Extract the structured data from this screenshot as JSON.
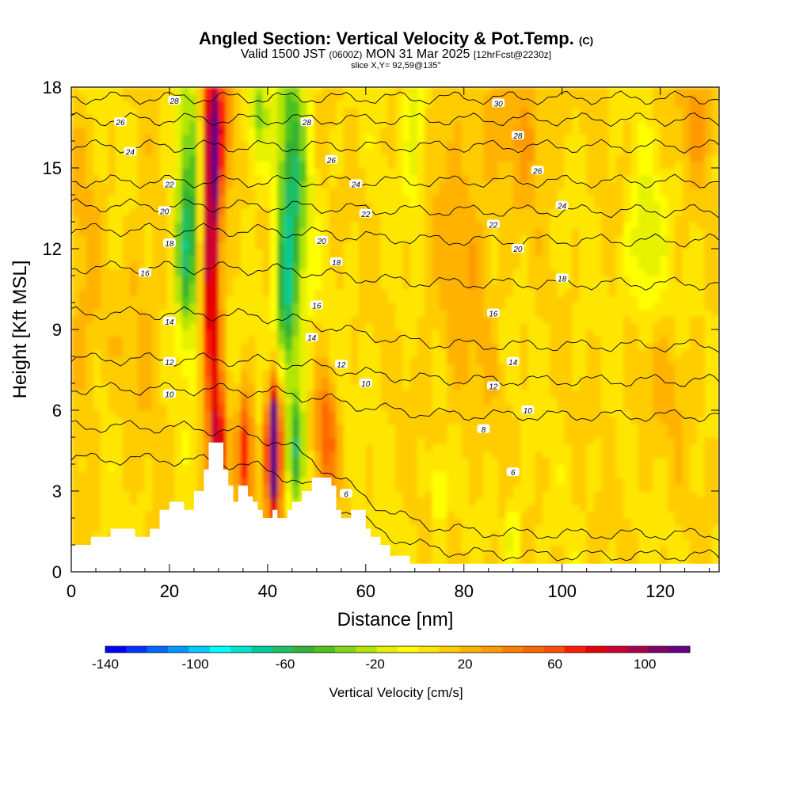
{
  "header": {
    "title": "Angled Section: Vertical Velocity & Pot.Temp.",
    "title_tag": "(C)",
    "valid_a": "Valid 1500 JST",
    "valid_utc": "(0600Z)",
    "valid_b": "MON 31 Mar 2025",
    "fcst": "[12hrFcst@2230z]",
    "slice": "slice X,Y= 92,59@135°"
  },
  "chart_data": {
    "type": "heatmap",
    "xlabel": "Distance [nm]",
    "ylabel": "Height [Kft MSL]",
    "xlim": [
      0,
      132
    ],
    "ylim": [
      0,
      18
    ],
    "x_ticks": [
      0,
      20,
      40,
      60,
      80,
      100,
      120
    ],
    "y_ticks": [
      0,
      3,
      6,
      9,
      12,
      15,
      18
    ],
    "colorbar": {
      "label": "Vertical Velocity [cm/s]",
      "range": [
        -140,
        120
      ],
      "tick_values": [
        -140,
        -100,
        -60,
        -20,
        20,
        60,
        100
      ],
      "colors": [
        "#0000ff",
        "#0033ff",
        "#0066ff",
        "#0099ff",
        "#00ccff",
        "#00ffff",
        "#00e5cc",
        "#00cc99",
        "#1ebf66",
        "#33b233",
        "#4dc21a",
        "#80d419",
        "#b3e600",
        "#e6f200",
        "#ffff00",
        "#ffe600",
        "#ffcc00",
        "#ffb300",
        "#ff9900",
        "#ff8000",
        "#ff6600",
        "#ff4d00",
        "#ff1a00",
        "#e60000",
        "#cc0033",
        "#a8004d",
        "#800066",
        "#660080"
      ]
    },
    "terrain_kft": [
      [
        0,
        1.0
      ],
      [
        4,
        1.0
      ],
      [
        4,
        1.3
      ],
      [
        8,
        1.3
      ],
      [
        8,
        1.6
      ],
      [
        13,
        1.6
      ],
      [
        13,
        1.3
      ],
      [
        16,
        1.3
      ],
      [
        16,
        1.6
      ],
      [
        18,
        1.6
      ],
      [
        18,
        2.3
      ],
      [
        20,
        2.3
      ],
      [
        20,
        2.6
      ],
      [
        23,
        2.6
      ],
      [
        23,
        2.3
      ],
      [
        25,
        2.3
      ],
      [
        25,
        3.0
      ],
      [
        27,
        3.0
      ],
      [
        27,
        3.8
      ],
      [
        28,
        3.8
      ],
      [
        28,
        4.8
      ],
      [
        31,
        4.8
      ],
      [
        31,
        3.8
      ],
      [
        32,
        3.8
      ],
      [
        32,
        3.2
      ],
      [
        33,
        3.2
      ],
      [
        33,
        2.6
      ],
      [
        34,
        2.6
      ],
      [
        34,
        3.2
      ],
      [
        36,
        3.2
      ],
      [
        36,
        2.8
      ],
      [
        37,
        2.8
      ],
      [
        37,
        2.6
      ],
      [
        38,
        2.6
      ],
      [
        38,
        2.3
      ],
      [
        39,
        2.3
      ],
      [
        39,
        2.0
      ],
      [
        41,
        2.0
      ],
      [
        41,
        2.3
      ],
      [
        42,
        2.3
      ],
      [
        42,
        2.0
      ],
      [
        44,
        2.0
      ],
      [
        44,
        2.3
      ],
      [
        45,
        2.3
      ],
      [
        45,
        2.6
      ],
      [
        47,
        2.6
      ],
      [
        47,
        3.0
      ],
      [
        49,
        3.0
      ],
      [
        49,
        3.5
      ],
      [
        53,
        3.5
      ],
      [
        53,
        3.2
      ],
      [
        54,
        3.2
      ],
      [
        54,
        2.3
      ],
      [
        55,
        2.3
      ],
      [
        55,
        2.0
      ],
      [
        57,
        2.0
      ],
      [
        57,
        2.3
      ],
      [
        60,
        2.3
      ],
      [
        60,
        1.6
      ],
      [
        61,
        1.6
      ],
      [
        61,
        1.3
      ],
      [
        63,
        1.3
      ],
      [
        63,
        1.0
      ],
      [
        65,
        1.0
      ],
      [
        65,
        0.6
      ],
      [
        69,
        0.6
      ],
      [
        69,
        0.3
      ],
      [
        132,
        0.3
      ]
    ],
    "velocity_features": [
      {
        "x": 28.5,
        "y": 12.0,
        "sx": 1.3,
        "sy": 4.5,
        "w": 95
      },
      {
        "x": 29.5,
        "y": 16.5,
        "sx": 2.0,
        "sy": 2.0,
        "w": 60
      },
      {
        "x": 41.2,
        "y": 4.8,
        "sx": 0.8,
        "sy": 1.2,
        "w": 150
      },
      {
        "x": 41.5,
        "y": 4.0,
        "sx": 1.2,
        "sy": 2.5,
        "w": 60
      },
      {
        "x": 30.0,
        "y": 4.5,
        "sx": 1.0,
        "sy": 1.5,
        "w": 85
      },
      {
        "x": 35.5,
        "y": 4.3,
        "sx": 1.0,
        "sy": 1.6,
        "w": 65
      },
      {
        "x": 52.0,
        "y": 5.0,
        "sx": 1.5,
        "sy": 1.6,
        "w": 45
      },
      {
        "x": 24.0,
        "y": 14.0,
        "sx": 2.0,
        "sy": 3.5,
        "w": -50
      },
      {
        "x": 23.5,
        "y": 11.5,
        "sx": 1.5,
        "sy": 2.0,
        "w": -35
      },
      {
        "x": 45.0,
        "y": 14.0,
        "sx": 2.2,
        "sy": 4.5,
        "w": -65
      },
      {
        "x": 43.5,
        "y": 10.0,
        "sx": 1.2,
        "sy": 2.0,
        "w": -45
      },
      {
        "x": 46.0,
        "y": 4.5,
        "sx": 1.2,
        "sy": 1.5,
        "w": -60
      },
      {
        "x": 38.0,
        "y": 17.0,
        "sx": 1.5,
        "sy": 1.5,
        "w": -40
      },
      {
        "x": 70.0,
        "y": 16.5,
        "sx": 1.5,
        "sy": 2.0,
        "w": -30
      },
      {
        "x": 117.0,
        "y": 12.0,
        "sx": 2.5,
        "sy": 2.0,
        "w": -30
      },
      {
        "x": 75.0,
        "y": 3.0,
        "sx": 1.0,
        "sy": 1.0,
        "w": -30
      },
      {
        "x": 90.0,
        "y": 1.5,
        "sx": 1.0,
        "sy": 1.0,
        "w": -25
      },
      {
        "x": 80.0,
        "y": 12.0,
        "sx": 5.0,
        "sy": 5.0,
        "w": 15
      },
      {
        "x": 93.0,
        "y": 16.5,
        "sx": 4.0,
        "sy": 2.0,
        "w": 18
      },
      {
        "x": 128.0,
        "y": 17.0,
        "sx": 3.0,
        "sy": 1.5,
        "w": 22
      },
      {
        "x": 15.0,
        "y": 9.5,
        "sx": 3.0,
        "sy": 3.0,
        "w": 12
      },
      {
        "x": 2.0,
        "y": 10.0,
        "sx": 3.0,
        "sy": 4.0,
        "w": 14
      },
      {
        "x": 120.0,
        "y": 7.0,
        "sx": 6.0,
        "sy": 2.0,
        "w": 10
      }
    ],
    "theta_contours": [
      {
        "level": 6,
        "y0": 2.4,
        "rise": 1.8,
        "label": [
          [
            56,
            2.9
          ],
          [
            90,
            3.7
          ]
        ]
      },
      {
        "level": 8,
        "y0": 3.4,
        "rise": 2.0,
        "label": [
          [
            84,
            5.3
          ]
        ]
      },
      {
        "level": 10,
        "y0": 6.3,
        "rise": 0.5,
        "label": [
          [
            20,
            6.6
          ],
          [
            60,
            7.0
          ],
          [
            93,
            6.0
          ]
        ]
      },
      {
        "level": 12,
        "y0": 7.5,
        "rise": 0.4,
        "label": [
          [
            20,
            7.8
          ],
          [
            55,
            7.7
          ],
          [
            86,
            6.9
          ]
        ]
      },
      {
        "level": 14,
        "y0": 9.0,
        "rise": 0.6,
        "label": [
          [
            20,
            9.3
          ],
          [
            49,
            8.7
          ],
          [
            90,
            7.8
          ]
        ]
      },
      {
        "level": 16,
        "y0": 11.0,
        "rise": 0.3,
        "label": [
          [
            15,
            11.1
          ],
          [
            50,
            9.9
          ],
          [
            86,
            9.6
          ]
        ]
      },
      {
        "level": 18,
        "y0": 12.5,
        "rise": 0.2,
        "label": [
          [
            20,
            12.2
          ],
          [
            54,
            11.5
          ],
          [
            100,
            10.9
          ]
        ]
      },
      {
        "level": 20,
        "y0": 13.5,
        "rise": 0.1,
        "label": [
          [
            19,
            13.4
          ],
          [
            51,
            12.3
          ],
          [
            91,
            12.0
          ]
        ]
      },
      {
        "level": 22,
        "y0": 14.5,
        "rise": 0.0,
        "label": [
          [
            20,
            14.4
          ],
          [
            60,
            13.3
          ],
          [
            86,
            12.9
          ]
        ]
      },
      {
        "level": 24,
        "y0": 15.8,
        "rise": 0.0,
        "label": [
          [
            12,
            15.6
          ],
          [
            58,
            14.4
          ],
          [
            100,
            13.6
          ]
        ]
      },
      {
        "level": 26,
        "y0": 16.8,
        "rise": 0.0,
        "label": [
          [
            10,
            16.7
          ],
          [
            53,
            15.3
          ],
          [
            95,
            14.9
          ]
        ]
      },
      {
        "level": 28,
        "y0": 17.6,
        "rise": 0.0,
        "label": [
          [
            21,
            17.5
          ],
          [
            48,
            16.7
          ],
          [
            91,
            16.2
          ]
        ]
      },
      {
        "level": 30,
        "y0": 18.4,
        "rise": 0.0,
        "label": [
          [
            87,
            17.4
          ]
        ]
      }
    ]
  }
}
